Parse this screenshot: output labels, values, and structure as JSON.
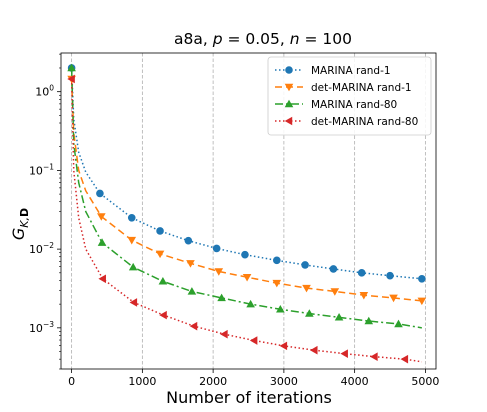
{
  "chart_data": {
    "type": "line",
    "title_parts": [
      "a8a, ",
      "p",
      " = 0.05, ",
      "n",
      " = 100"
    ],
    "xlabel": "Number of iterations",
    "ylabel": {
      "base": "G",
      "sub_italic": "K,",
      "sub_bold": "D"
    },
    "x_scale": "linear",
    "y_scale": "log",
    "xlim": [
      -150,
      5150
    ],
    "ylim": [
      0.0003,
      3.1
    ],
    "x_ticks": [
      0,
      1000,
      2000,
      3000,
      4000,
      5000
    ],
    "x_tick_labels": [
      "0",
      "1000",
      "2000",
      "3000",
      "4000",
      "5000"
    ],
    "y_ticks": [
      0.001,
      0.01,
      0.1,
      1
    ],
    "y_tick_labels": [
      {
        "base": "10",
        "exp": "−3"
      },
      {
        "base": "10",
        "exp": "−2"
      },
      {
        "base": "10",
        "exp": "−1"
      },
      {
        "base": "10",
        "exp": "0"
      }
    ],
    "grid": "vertical dashed at x ticks",
    "legend_position": "top-right",
    "series": [
      {
        "name": "MARINA rand-1",
        "color": "#1f77b4",
        "linestyle": "dotted",
        "marker": "circle",
        "marker_x": [
          0,
          400,
          850,
          1250,
          1650,
          2050,
          2450,
          2900,
          3300,
          3700,
          4100,
          4500,
          4950
        ],
        "x": [
          0,
          30,
          100,
          200,
          400,
          850,
          1250,
          1650,
          2050,
          2450,
          2900,
          3300,
          3700,
          4100,
          4500,
          4950
        ],
        "y": [
          2.0,
          0.45,
          0.17,
          0.095,
          0.051,
          0.025,
          0.017,
          0.0128,
          0.0102,
          0.0085,
          0.0072,
          0.0063,
          0.0056,
          0.005,
          0.0046,
          0.0042
        ]
      },
      {
        "name": "det-MARINA rand-1",
        "color": "#ff7f0e",
        "linestyle": "dashed",
        "marker": "triangle-down",
        "marker_x": [
          0,
          420,
          850,
          1250,
          1680,
          2080,
          2480,
          2900,
          3320,
          3720,
          4130,
          4550,
          4950
        ],
        "x": [
          0,
          30,
          100,
          200,
          420,
          850,
          1250,
          1680,
          2080,
          2480,
          2900,
          3320,
          3720,
          4130,
          4550,
          4950
        ],
        "y": [
          1.45,
          0.3,
          0.1,
          0.055,
          0.026,
          0.013,
          0.0087,
          0.0066,
          0.0052,
          0.0044,
          0.0037,
          0.0032,
          0.0029,
          0.0026,
          0.0024,
          0.0022
        ]
      },
      {
        "name": "MARINA rand-80",
        "color": "#2ca02c",
        "linestyle": "dash-dot",
        "marker": "triangle-up",
        "marker_x": [
          0,
          430,
          870,
          1290,
          1700,
          2120,
          2530,
          2950,
          3360,
          3780,
          4200,
          4620
        ],
        "x": [
          0,
          30,
          100,
          200,
          430,
          870,
          1290,
          1700,
          2120,
          2530,
          2950,
          3360,
          3780,
          4200,
          4620,
          4950
        ],
        "y": [
          2.0,
          0.22,
          0.07,
          0.03,
          0.0121,
          0.0059,
          0.0039,
          0.0029,
          0.0024,
          0.002,
          0.00172,
          0.00152,
          0.00136,
          0.00122,
          0.00112,
          0.001
        ]
      },
      {
        "name": "det-MARINA rand-80",
        "color": "#d62728",
        "linestyle": "dotted",
        "marker": "triangle-left",
        "marker_x": [
          0,
          440,
          880,
          1300,
          1730,
          2160,
          2580,
          3000,
          3430,
          3860,
          4280,
          4710
        ],
        "x": [
          0,
          30,
          100,
          200,
          440,
          880,
          1300,
          1730,
          2160,
          2580,
          3000,
          3430,
          3860,
          4280,
          4710,
          4950
        ],
        "y": [
          1.45,
          0.1,
          0.025,
          0.01,
          0.0042,
          0.0021,
          0.00145,
          0.00105,
          0.00083,
          0.00069,
          0.00059,
          0.00052,
          0.00047,
          0.00043,
          0.0004,
          0.00037
        ]
      }
    ]
  }
}
